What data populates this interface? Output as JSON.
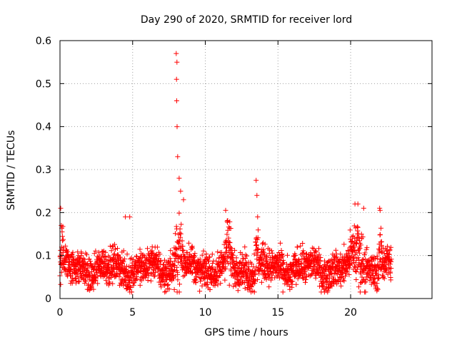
{
  "chart_data": {
    "type": "scatter",
    "title": "Day 290 of 2020, SRMTID for receiver lord",
    "xlabel": "GPS time / hours",
    "ylabel": "SRMTID / TECUs",
    "xlim": [
      0,
      25.6
    ],
    "ylim": [
      0,
      0.6
    ],
    "x_ticks": [
      0,
      5,
      10,
      15,
      20
    ],
    "x_tick_labels": [
      "0",
      "5",
      "10",
      "15",
      "20"
    ],
    "y_ticks": [
      0,
      0.1,
      0.2,
      0.3,
      0.4,
      0.5,
      0.6
    ],
    "y_tick_labels": [
      "0",
      "0.1",
      "0.2",
      "0.3",
      "0.4",
      "0.5",
      "0.6"
    ],
    "grid": true,
    "marker": "+",
    "series": [
      {
        "name": "SRMTID",
        "color": "#ff0000",
        "x_range": [
          0,
          22.8
        ],
        "baseline_level": 0.07,
        "baseline_spread": 0.03,
        "peaks": [
          {
            "x": 0.05,
            "y": 0.21
          },
          {
            "x": 4.5,
            "y": 0.19
          },
          {
            "x": 4.8,
            "y": 0.19
          },
          {
            "x": 8.0,
            "y": 0.57
          },
          {
            "x": 8.05,
            "y": 0.55
          },
          {
            "x": 8.02,
            "y": 0.51
          },
          {
            "x": 8.03,
            "y": 0.46
          },
          {
            "x": 8.06,
            "y": 0.4
          },
          {
            "x": 8.1,
            "y": 0.33
          },
          {
            "x": 8.2,
            "y": 0.28
          },
          {
            "x": 8.3,
            "y": 0.25
          },
          {
            "x": 8.5,
            "y": 0.23
          },
          {
            "x": 11.4,
            "y": 0.205
          },
          {
            "x": 13.5,
            "y": 0.275
          },
          {
            "x": 13.55,
            "y": 0.24
          },
          {
            "x": 13.6,
            "y": 0.19
          },
          {
            "x": 20.3,
            "y": 0.22
          },
          {
            "x": 20.5,
            "y": 0.22
          },
          {
            "x": 20.9,
            "y": 0.21
          },
          {
            "x": 22.0,
            "y": 0.21
          }
        ],
        "activity_windows": [
          {
            "x_start": 0.0,
            "x_end": 0.3,
            "level": 0.16
          },
          {
            "x_start": 7.8,
            "x_end": 8.6,
            "level": 0.17
          },
          {
            "x_start": 11.2,
            "x_end": 11.9,
            "level": 0.14
          },
          {
            "x_start": 13.3,
            "x_end": 13.8,
            "level": 0.13
          },
          {
            "x_start": 19.8,
            "x_end": 21.2,
            "level": 0.15
          },
          {
            "x_start": 21.9,
            "x_end": 22.2,
            "level": 0.15
          }
        ]
      }
    ]
  }
}
